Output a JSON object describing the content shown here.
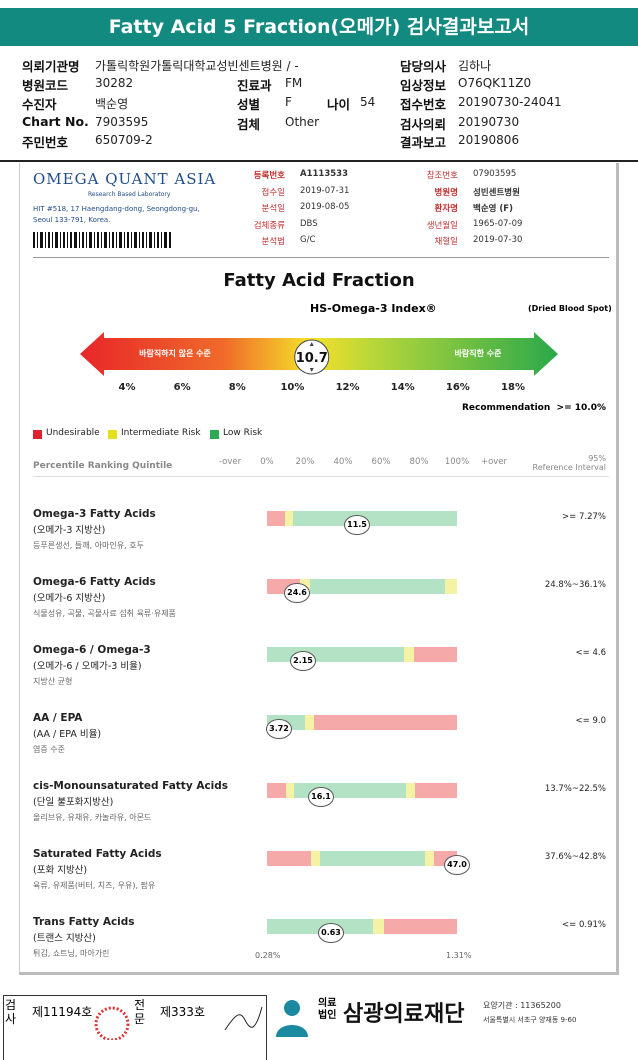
{
  "header": {
    "title": "Fatty Acid 5 Fraction(오메가) 검사결과보고서"
  },
  "patient_info": {
    "fields": [
      {
        "label": "의뢰기관명",
        "value": "가톨릭학원가톨릭대학교성빈센트병원 / -"
      },
      {
        "label": "담당의사",
        "value": "김하나"
      },
      {
        "label": "병원코드",
        "value": "30282"
      },
      {
        "label": "진료과",
        "value": "FM"
      },
      {
        "label": "임상정보",
        "value": "O76QK11Z0"
      },
      {
        "label": "수진자",
        "value": "백순영"
      },
      {
        "label": "성별",
        "value": "F"
      },
      {
        "label": "나이",
        "value": "54"
      },
      {
        "label": "접수번호",
        "value": "20190730-24041"
      },
      {
        "label": "Chart No.",
        "value": "7903595"
      },
      {
        "label": "검체",
        "value": "Other"
      },
      {
        "label": "검사의뢰",
        "value": "20190730"
      },
      {
        "label": "주민번호",
        "value": "650709-2"
      },
      {
        "label": "결과보고",
        "value": "20190806"
      }
    ]
  },
  "lab": {
    "name": "OMEGA QUANT ASIA",
    "tagline": "Research Based Laboratory",
    "address": "HIT #518, 17 Haengdang-dong, Seongdong-gu, Seoul 133-791, Korea.",
    "fields": [
      {
        "label": "등록번호",
        "value": "A1113533"
      },
      {
        "label": "접수일",
        "value": "2019-07-31"
      },
      {
        "label": "분석일",
        "value": "2019-08-05"
      },
      {
        "label": "검체종류",
        "value": "DBS"
      },
      {
        "label": "분석법",
        "value": "G/C"
      },
      {
        "label": "참조번호",
        "value": "07903595"
      },
      {
        "label": "병원명",
        "value": "성빈센트병원"
      },
      {
        "label": "환자명",
        "value": "백순영 (F)"
      },
      {
        "label": "생년월일",
        "value": "1965-07-09"
      },
      {
        "label": "채혈일",
        "value": "2019-07-30"
      }
    ]
  },
  "index": {
    "title": "Fatty Acid Fraction",
    "subtitle": "HS-Omega-3 Index®",
    "sample": "(Dried Blood Spot)",
    "low_label": "바람직하지 않은 수준",
    "high_label": "바람직한 수준",
    "value": 10.7,
    "xlim": [
      4,
      18
    ],
    "xticks": [
      {
        "value": 4,
        "label": "4%"
      },
      {
        "value": 6,
        "label": "6%"
      },
      {
        "value": 8,
        "label": "8%"
      },
      {
        "value": 10,
        "label": "10%"
      },
      {
        "value": 12,
        "label": "12%"
      },
      {
        "value": 14,
        "label": "14%"
      },
      {
        "value": 16,
        "label": "16%"
      },
      {
        "value": 18,
        "label": "18%"
      }
    ],
    "recommendation_label": "Recommendation",
    "recommendation": ">= 10.0%"
  },
  "legend": [
    "Undesirable",
    "Intermediate Risk",
    "Low Risk"
  ],
  "percentile": {
    "title": "Percentile Ranking Quintile",
    "scale": [
      "-over",
      "0%",
      "20%",
      "40%",
      "60%",
      "80%",
      "100%",
      "+over"
    ],
    "reference_top": "95%",
    "reference_title": "Reference Interval"
  },
  "results": [
    {
      "name": "Omega-3 Fatty Acids",
      "korean": "(오메가-3 지방산)",
      "sources": "등푸른생선, 들깨, 아마인유, 호두",
      "value": "11.5",
      "reference": ">= 7.27%"
    },
    {
      "name": "Omega-6 Fatty Acids",
      "korean": "(오메가-6 지방산)",
      "sources": "식물성유, 곡물, 곡물사료 섭취 육류·유제품",
      "value": "24.6",
      "reference": "24.8%~36.1%"
    },
    {
      "name": "Omega-6 / Omega-3",
      "korean": "(오메가-6 / 오메가-3 비율)",
      "sources": "지방산 균형",
      "value": "2.15",
      "reference": "<= 4.6"
    },
    {
      "name": "AA / EPA",
      "korean": "(AA / EPA 비율)",
      "sources": "염증 수준",
      "value": "3.72",
      "reference": "<= 9.0"
    },
    {
      "name": "cis-Monounsaturated Fatty Acids",
      "korean": "(단일 불포화지방산)",
      "sources": "올리브유, 유채유, 카놀라유, 아몬드",
      "value": "16.1",
      "reference": "13.7%~22.5%"
    },
    {
      "name": "Saturated Fatty Acids",
      "korean": "(포화 지방산)",
      "sources": "육류, 유제품(버터, 치즈, 우유), 팜유",
      "value": "47.0",
      "reference": "37.6%~42.8%"
    },
    {
      "name": "Trans Fatty Acids",
      "korean": "(트랜스 지방산)",
      "sources": "튀김, 쇼트닝, 마아가린",
      "value": "0.63",
      "reference": "<= 0.91%"
    }
  ],
  "trans_scale": [
    "0.28%",
    "1.31%"
  ],
  "footer": {
    "inspect_label": "검사",
    "inspect_no": "제11194호",
    "specialist_label": "전문",
    "specialist_no": "제333호",
    "corp": "의료법인",
    "foundation": "삼광의료재단",
    "code": "요양기관 : 11365200",
    "address": "서울특별시 서초구 양재동 9-60"
  }
}
